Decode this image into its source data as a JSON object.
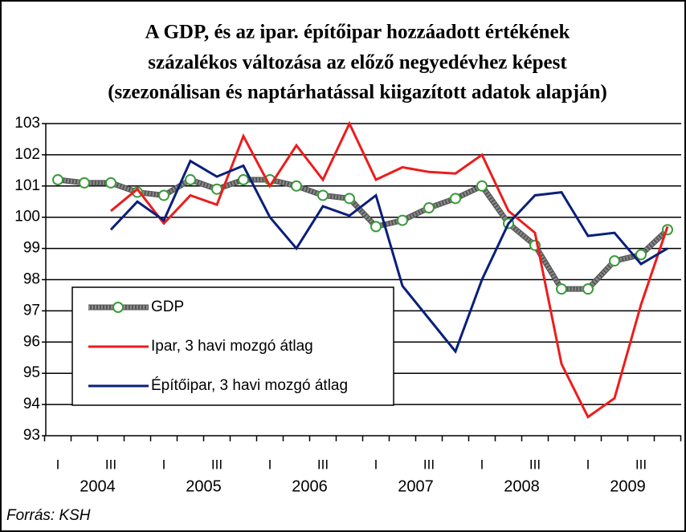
{
  "chart_data": {
    "type": "line",
    "title": [
      "A GDP, és az ipar. építőipar hozzáadott értékének",
      "százalékos változása az előző negyedévhez képest",
      "(szezonálisan és naptárhatással kiigazított adatok alapján)"
    ],
    "categories": [
      "I",
      null,
      "III",
      null,
      "I",
      null,
      "III",
      null,
      "I",
      null,
      "III",
      null,
      "I",
      null,
      "III",
      null,
      "I",
      null,
      "III",
      null,
      "I",
      null,
      "III",
      null
    ],
    "years": [
      "2004",
      "2005",
      "2006",
      "2007",
      "2008",
      "2009"
    ],
    "series": [
      {
        "name": "GDP",
        "color": "#8c8c8c",
        "marker_color": "#3a9a3a",
        "values": [
          101.2,
          101.1,
          101.1,
          100.8,
          100.7,
          101.2,
          100.9,
          101.2,
          101.2,
          101.0,
          100.7,
          100.6,
          99.7,
          99.9,
          100.3,
          100.6,
          101.0,
          99.8,
          99.1,
          97.7,
          97.7,
          98.6,
          98.8,
          99.6
        ]
      },
      {
        "name": "Ipar, 3 havi mozgó átlag",
        "color": "#ee1c1c",
        "values": [
          null,
          null,
          100.2,
          100.9,
          99.8,
          100.7,
          100.4,
          102.6,
          101.0,
          102.3,
          101.2,
          103.0,
          101.2,
          101.6,
          101.45,
          101.4,
          102.0,
          100.2,
          99.5,
          95.3,
          93.6,
          94.2,
          97.2,
          99.7
        ]
      },
      {
        "name": "Építőipar, 3 havi mozgó átlag",
        "color": "#0a1f7a",
        "values": [
          null,
          null,
          99.6,
          100.5,
          99.9,
          101.8,
          101.3,
          101.65,
          100.0,
          99.0,
          100.35,
          100.05,
          100.7,
          97.8,
          96.75,
          95.7,
          98.0,
          99.8,
          100.7,
          100.8,
          99.4,
          99.5,
          98.5,
          99.0
        ]
      }
    ],
    "ylim": [
      93,
      103
    ],
    "yticks": [
      93,
      94,
      95,
      96,
      97,
      98,
      99,
      100,
      101,
      102,
      103
    ],
    "grid": true,
    "source": "Forrás: KSH"
  }
}
